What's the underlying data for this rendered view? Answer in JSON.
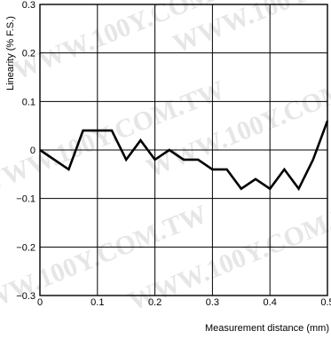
{
  "chart_data": {
    "type": "line",
    "xlabel": "Measurement distance (mm)",
    "ylabel": "Linearity (% F.S.)",
    "xlim": [
      0,
      0.5
    ],
    "ylim": [
      -0.3,
      0.3
    ],
    "grid": true,
    "x_ticks": [
      "0",
      "0.1",
      "0.2",
      "0.3",
      "0.4",
      "0.5"
    ],
    "y_ticks": [
      "0.3",
      "0.2",
      "0.1",
      "0",
      "−0.1",
      "−0.2",
      "−0.3"
    ],
    "series": [
      {
        "x": [
          0,
          0.05,
          0.075,
          0.125,
          0.15,
          0.175,
          0.2,
          0.225,
          0.25,
          0.275,
          0.3,
          0.325,
          0.35,
          0.375,
          0.4,
          0.425,
          0.45,
          0.475,
          0.5
        ],
        "y": [
          0,
          -0.04,
          0.04,
          0.04,
          -0.02,
          0.02,
          -0.02,
          0,
          -0.02,
          -0.02,
          -0.04,
          -0.04,
          -0.08,
          -0.06,
          -0.08,
          -0.04,
          -0.08,
          -0.02,
          0.06
        ]
      }
    ],
    "line_color": "#000000"
  },
  "watermarks": [
    "WWW.100Y.COM.TW",
    "WWW.100Y.COM.TW",
    "WWW.100Y.COM.TW",
    "WWW.100Y.COM.TW",
    "WWW.100Y.COM.TW",
    "WWW.100Y.COM.TW"
  ]
}
